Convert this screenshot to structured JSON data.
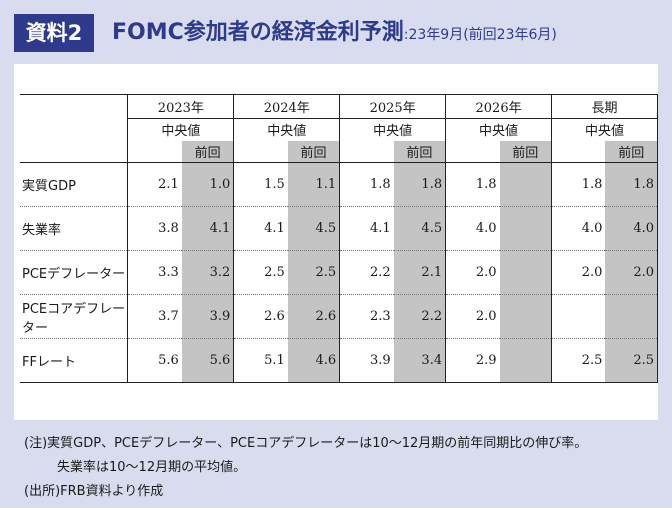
{
  "header": {
    "badge": "資料2",
    "title": "FOMC参加者の経済金利予測",
    "subtitle": ":23年9月(前回23年6月)"
  },
  "table": {
    "years": [
      "2023年",
      "2024年",
      "2025年",
      "2026年",
      "長期"
    ],
    "median_label": "中央値",
    "previous_label": "前回",
    "rows": [
      {
        "label": "実質GDP",
        "values": [
          [
            "2.1",
            "1.0"
          ],
          [
            "1.5",
            "1.1"
          ],
          [
            "1.8",
            "1.8"
          ],
          [
            "1.8",
            ""
          ],
          [
            "1.8",
            "1.8"
          ]
        ]
      },
      {
        "label": "失業率",
        "values": [
          [
            "3.8",
            "4.1"
          ],
          [
            "4.1",
            "4.5"
          ],
          [
            "4.1",
            "4.5"
          ],
          [
            "4.0",
            ""
          ],
          [
            "4.0",
            "4.0"
          ]
        ]
      },
      {
        "label": "PCEデフレーター",
        "values": [
          [
            "3.3",
            "3.2"
          ],
          [
            "2.5",
            "2.5"
          ],
          [
            "2.2",
            "2.1"
          ],
          [
            "2.0",
            ""
          ],
          [
            "2.0",
            "2.0"
          ]
        ]
      },
      {
        "label": "PCEコアデフレーター",
        "values": [
          [
            "3.7",
            "3.9"
          ],
          [
            "2.6",
            "2.6"
          ],
          [
            "2.3",
            "2.2"
          ],
          [
            "2.0",
            ""
          ],
          [
            "",
            ""
          ]
        ]
      },
      {
        "label": "FFレート",
        "values": [
          [
            "5.6",
            "5.6"
          ],
          [
            "5.1",
            "4.6"
          ],
          [
            "3.9",
            "3.4"
          ],
          [
            "2.9",
            ""
          ],
          [
            "2.5",
            "2.5"
          ]
        ]
      }
    ]
  },
  "notes": {
    "line1": "(注)実質GDP、PCEデフレーター、PCEコアデフレーターは10～12月期の前年同期比の伸び率。",
    "line2": "失業率は10～12月期の平均値。",
    "line3": "(出所)FRB資料より作成"
  }
}
